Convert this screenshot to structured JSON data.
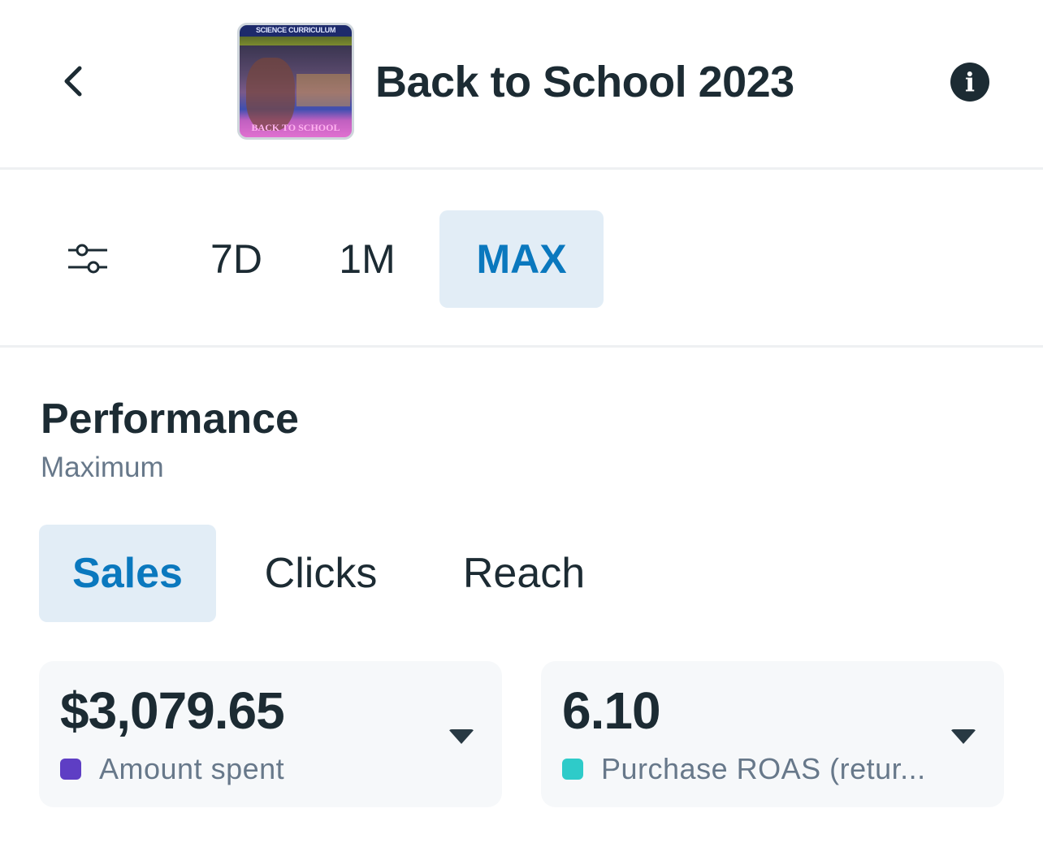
{
  "header": {
    "title": "Back to School 2023",
    "back_icon": "chevron-left-icon",
    "info_icon": "info-icon",
    "info_glyph": "i",
    "thumbnail_text": [
      "SCIENCE CURRICULUM",
      "BACK TO SCHOOL"
    ]
  },
  "range": {
    "filter_icon": "sliders-icon",
    "options": [
      "7D",
      "1M",
      "MAX"
    ],
    "selected": "MAX"
  },
  "performance": {
    "title": "Performance",
    "subtitle": "Maximum",
    "tabs": [
      "Sales",
      "Clicks",
      "Reach"
    ],
    "selected_tab": "Sales",
    "metrics": [
      {
        "value": "$3,079.65",
        "label": "Amount spent",
        "color": "#5e3ec4"
      },
      {
        "value": "6.10",
        "label": "Purchase ROAS (retur...",
        "color": "#2ecbc9"
      }
    ]
  },
  "colors": {
    "accent": "#0a78be",
    "active_bg": "#e2edf6",
    "text": "#1c2b33"
  }
}
